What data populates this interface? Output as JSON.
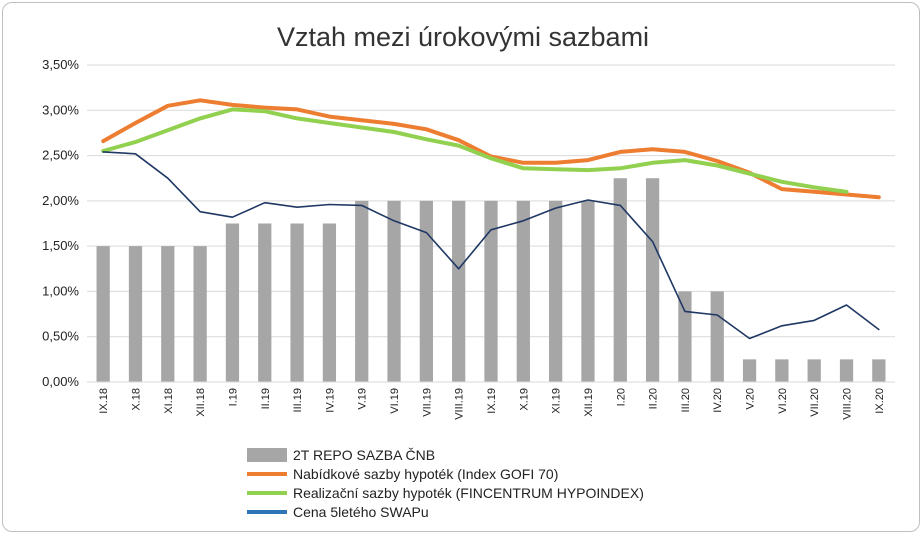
{
  "chart_data": {
    "type": "bar+line",
    "title": "Vztah mezi úrokovými sazbami",
    "ylim": [
      0,
      0.035
    ],
    "yticks": [
      "0,00%",
      "0,50%",
      "1,00%",
      "1,50%",
      "2,00%",
      "2,50%",
      "3,00%",
      "3,50%"
    ],
    "grid": true,
    "legend_position": "bottom",
    "categories": [
      "IX.18",
      "X.18",
      "XI.18",
      "XII.18",
      "I.19",
      "II.19",
      "III.19",
      "IV.19",
      "V.19",
      "VI.19",
      "VII.19",
      "VIII.19",
      "IX.19",
      "X.19",
      "XI.19",
      "XII.19",
      "I.20",
      "II.20",
      "III.20",
      "IV.20",
      "V.20",
      "VI.20",
      "VII.20",
      "VIII.20",
      "IX.20"
    ],
    "series": [
      {
        "name": "2T REPO SAZBA ČNB",
        "type": "bar",
        "color": "#a6a6a6",
        "values": [
          0.015,
          0.015,
          0.015,
          0.015,
          0.0175,
          0.0175,
          0.0175,
          0.0175,
          0.02,
          0.02,
          0.02,
          0.02,
          0.02,
          0.02,
          0.02,
          0.02,
          0.0225,
          0.0225,
          0.01,
          0.01,
          0.0025,
          0.0025,
          0.0025,
          0.0025,
          0.0025
        ]
      },
      {
        "name": "Nabídkové sazby hypoték (Index GOFI 70)",
        "type": "line",
        "color": "#ed7d31",
        "values": [
          0.0266,
          0.0286,
          0.0305,
          0.0311,
          0.0306,
          0.0303,
          0.0301,
          0.0293,
          0.0289,
          0.0285,
          0.0279,
          0.0267,
          0.0249,
          0.0242,
          0.0242,
          0.0245,
          0.0254,
          0.0257,
          0.0254,
          0.0244,
          0.0231,
          0.0213,
          0.021,
          0.0207,
          0.0204
        ]
      },
      {
        "name": "Realizační sazby hypoték (FINCENTRUM HYPOINDEX)",
        "type": "line",
        "color": "#92d050",
        "values": [
          0.0255,
          0.0265,
          0.0278,
          0.0291,
          0.0301,
          0.0299,
          0.0291,
          0.0286,
          0.0281,
          0.0276,
          0.0268,
          0.0261,
          0.0247,
          0.0236,
          0.0235,
          0.0234,
          0.0236,
          0.0242,
          0.0245,
          0.0239,
          0.023,
          0.0221,
          0.0215,
          0.021,
          null
        ]
      },
      {
        "name": "Cena 5letého SWAPu",
        "type": "line",
        "color": "#1f3864",
        "legend_color": "#2e75b6",
        "values": [
          0.0254,
          0.0252,
          0.0225,
          0.0188,
          0.0182,
          0.0198,
          0.0193,
          0.0196,
          0.0195,
          0.0178,
          0.0165,
          0.0125,
          0.0168,
          0.0178,
          0.0192,
          0.0201,
          0.0195,
          0.0155,
          0.0078,
          0.0074,
          0.0048,
          0.0062,
          0.0068,
          0.0085,
          0.0058
        ]
      }
    ]
  }
}
